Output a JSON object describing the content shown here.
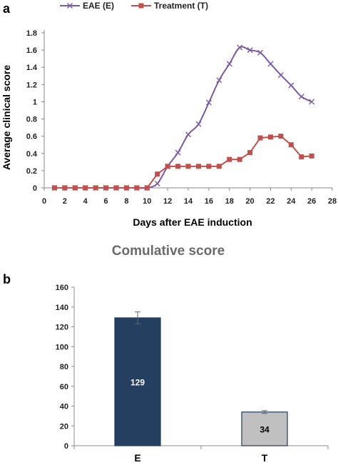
{
  "chart_data": [
    {
      "type": "line",
      "panel": "a",
      "title": "",
      "xlabel": "Days after EAE induction",
      "ylabel": "Average clinical score",
      "xlim": [
        0,
        28
      ],
      "ylim": [
        0,
        1.8
      ],
      "xticks": [
        "0",
        "2",
        "4",
        "6",
        "8",
        "10",
        "12",
        "14",
        "16",
        "18",
        "20",
        "22",
        "24",
        "26",
        "28"
      ],
      "yticks": [
        "0",
        "0.2",
        "0.4",
        "0.6",
        "0.8",
        "1",
        "1.2",
        "1.4",
        "1.6",
        "1.8"
      ],
      "legend_position": "top",
      "series": [
        {
          "name": "EAE (E)",
          "color": "#7b5aa6",
          "marker": "x",
          "x": [
            1,
            2,
            3,
            4,
            5,
            6,
            7,
            8,
            9,
            10,
            11,
            12,
            13,
            14,
            15,
            16,
            17,
            18,
            19,
            20,
            21,
            22,
            23,
            24,
            25,
            26
          ],
          "y": [
            0,
            0,
            0,
            0,
            0,
            0,
            0,
            0,
            0,
            0,
            0.05,
            0.25,
            0.41,
            0.62,
            0.74,
            0.99,
            1.25,
            1.44,
            1.63,
            1.6,
            1.57,
            1.44,
            1.31,
            1.19,
            1.06,
            1.0
          ]
        },
        {
          "name": "Treatment (T)",
          "color": "#c0504d",
          "marker": "square",
          "x": [
            1,
            2,
            3,
            4,
            5,
            6,
            7,
            8,
            9,
            10,
            11,
            12,
            13,
            14,
            15,
            16,
            17,
            18,
            19,
            20,
            21,
            22,
            23,
            24,
            25,
            26
          ],
          "y": [
            0,
            0,
            0,
            0,
            0,
            0,
            0,
            0,
            0,
            0,
            0.16,
            0.25,
            0.25,
            0.25,
            0.25,
            0.25,
            0.25,
            0.33,
            0.33,
            0.41,
            0.58,
            0.59,
            0.6,
            0.5,
            0.36,
            0.37
          ]
        }
      ]
    },
    {
      "type": "bar",
      "panel": "b",
      "title": "Comulative score",
      "xlabel": "",
      "ylabel": "",
      "ylim": [
        0,
        160
      ],
      "yticks": [
        "0",
        "20",
        "40",
        "60",
        "80",
        "100",
        "120",
        "140",
        "160"
      ],
      "categories": [
        "E",
        "T"
      ],
      "values": [
        129,
        34
      ],
      "value_labels": [
        "129",
        "34"
      ],
      "errors": [
        6,
        1.5
      ],
      "colors": [
        "#243f60",
        "#c0c0c0"
      ],
      "label_colors": [
        "#ffffff",
        "#000000"
      ]
    }
  ]
}
